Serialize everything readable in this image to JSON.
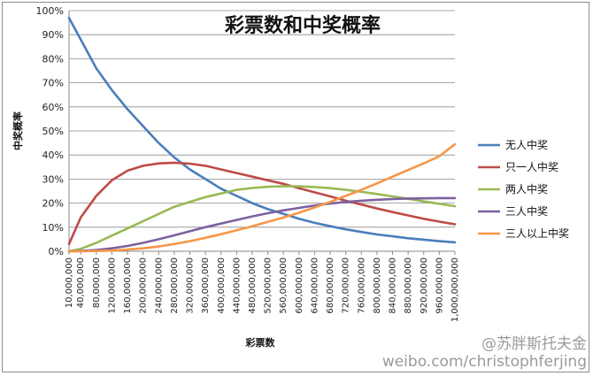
{
  "watermark": {
    "handle": "@苏胖斯托夫金",
    "url": "weibo.com/christophferjing"
  },
  "chart_data": {
    "type": "line",
    "title": "彩票数和中奖概率",
    "xlabel": "彩票数",
    "ylabel": "中奖概率",
    "ylim": [
      0,
      1
    ],
    "y_ticks": [
      "0%",
      "10%",
      "20%",
      "30%",
      "40%",
      "50%",
      "60%",
      "70%",
      "80%",
      "90%",
      "100%"
    ],
    "grid": true,
    "legend_position": "right",
    "x_tick_labels": [
      "10,000,000",
      "40,000,000",
      "80,000,000",
      "120,000,000",
      "160,000,000",
      "200,000,000",
      "240,000,000",
      "280,000,000",
      "320,000,000",
      "360,000,000",
      "400,000,000",
      "440,000,000",
      "480,000,000",
      "520,000,000",
      "560,000,000",
      "600,000,000",
      "640,000,000",
      "680,000,000",
      "720,000,000",
      "760,000,000",
      "800,000,000",
      "840,000,000",
      "880,000,000",
      "920,000,000",
      "960,000,000",
      "1,000,000,000"
    ],
    "x": [
      10,
      40,
      80,
      120,
      160,
      200,
      240,
      280,
      320,
      360,
      400,
      440,
      480,
      520,
      560,
      600,
      640,
      680,
      720,
      760,
      800,
      840,
      880,
      920,
      960,
      1000
    ],
    "x_units": "millions of tickets",
    "series": [
      {
        "name": "无人中奖",
        "color": "#4a7ebb",
        "values": [
          0.97,
          0.88,
          0.76,
          0.67,
          0.59,
          0.52,
          0.45,
          0.39,
          0.34,
          0.3,
          0.26,
          0.23,
          0.2,
          0.175,
          0.155,
          0.135,
          0.118,
          0.104,
          0.091,
          0.08,
          0.07,
          0.062,
          0.054,
          0.048,
          0.042,
          0.037
        ]
      },
      {
        "name": "只一人中奖",
        "color": "#be4b48",
        "values": [
          0.03,
          0.14,
          0.23,
          0.295,
          0.335,
          0.355,
          0.365,
          0.368,
          0.364,
          0.355,
          0.34,
          0.325,
          0.31,
          0.295,
          0.28,
          0.262,
          0.245,
          0.228,
          0.21,
          0.194,
          0.178,
          0.163,
          0.149,
          0.135,
          0.123,
          0.112
        ]
      },
      {
        "name": "两人中奖",
        "color": "#98b954",
        "values": [
          0.0,
          0.01,
          0.035,
          0.065,
          0.095,
          0.125,
          0.155,
          0.185,
          0.205,
          0.225,
          0.24,
          0.255,
          0.263,
          0.268,
          0.27,
          0.27,
          0.267,
          0.262,
          0.255,
          0.247,
          0.238,
          0.228,
          0.218,
          0.207,
          0.197,
          0.187
        ]
      },
      {
        "name": "三人中奖",
        "color": "#7d60a0",
        "values": [
          0.0,
          0.001,
          0.005,
          0.012,
          0.022,
          0.035,
          0.05,
          0.066,
          0.083,
          0.1,
          0.115,
          0.13,
          0.145,
          0.158,
          0.17,
          0.18,
          0.19,
          0.198,
          0.205,
          0.21,
          0.214,
          0.217,
          0.219,
          0.22,
          0.221,
          0.221
        ]
      },
      {
        "name": "三人以上中奖",
        "color": "#f79646",
        "values": [
          0.0,
          0.0,
          0.001,
          0.003,
          0.007,
          0.012,
          0.02,
          0.03,
          0.042,
          0.056,
          0.071,
          0.087,
          0.104,
          0.122,
          0.14,
          0.16,
          0.182,
          0.205,
          0.23,
          0.255,
          0.282,
          0.31,
          0.338,
          0.365,
          0.395,
          0.445
        ]
      }
    ]
  }
}
